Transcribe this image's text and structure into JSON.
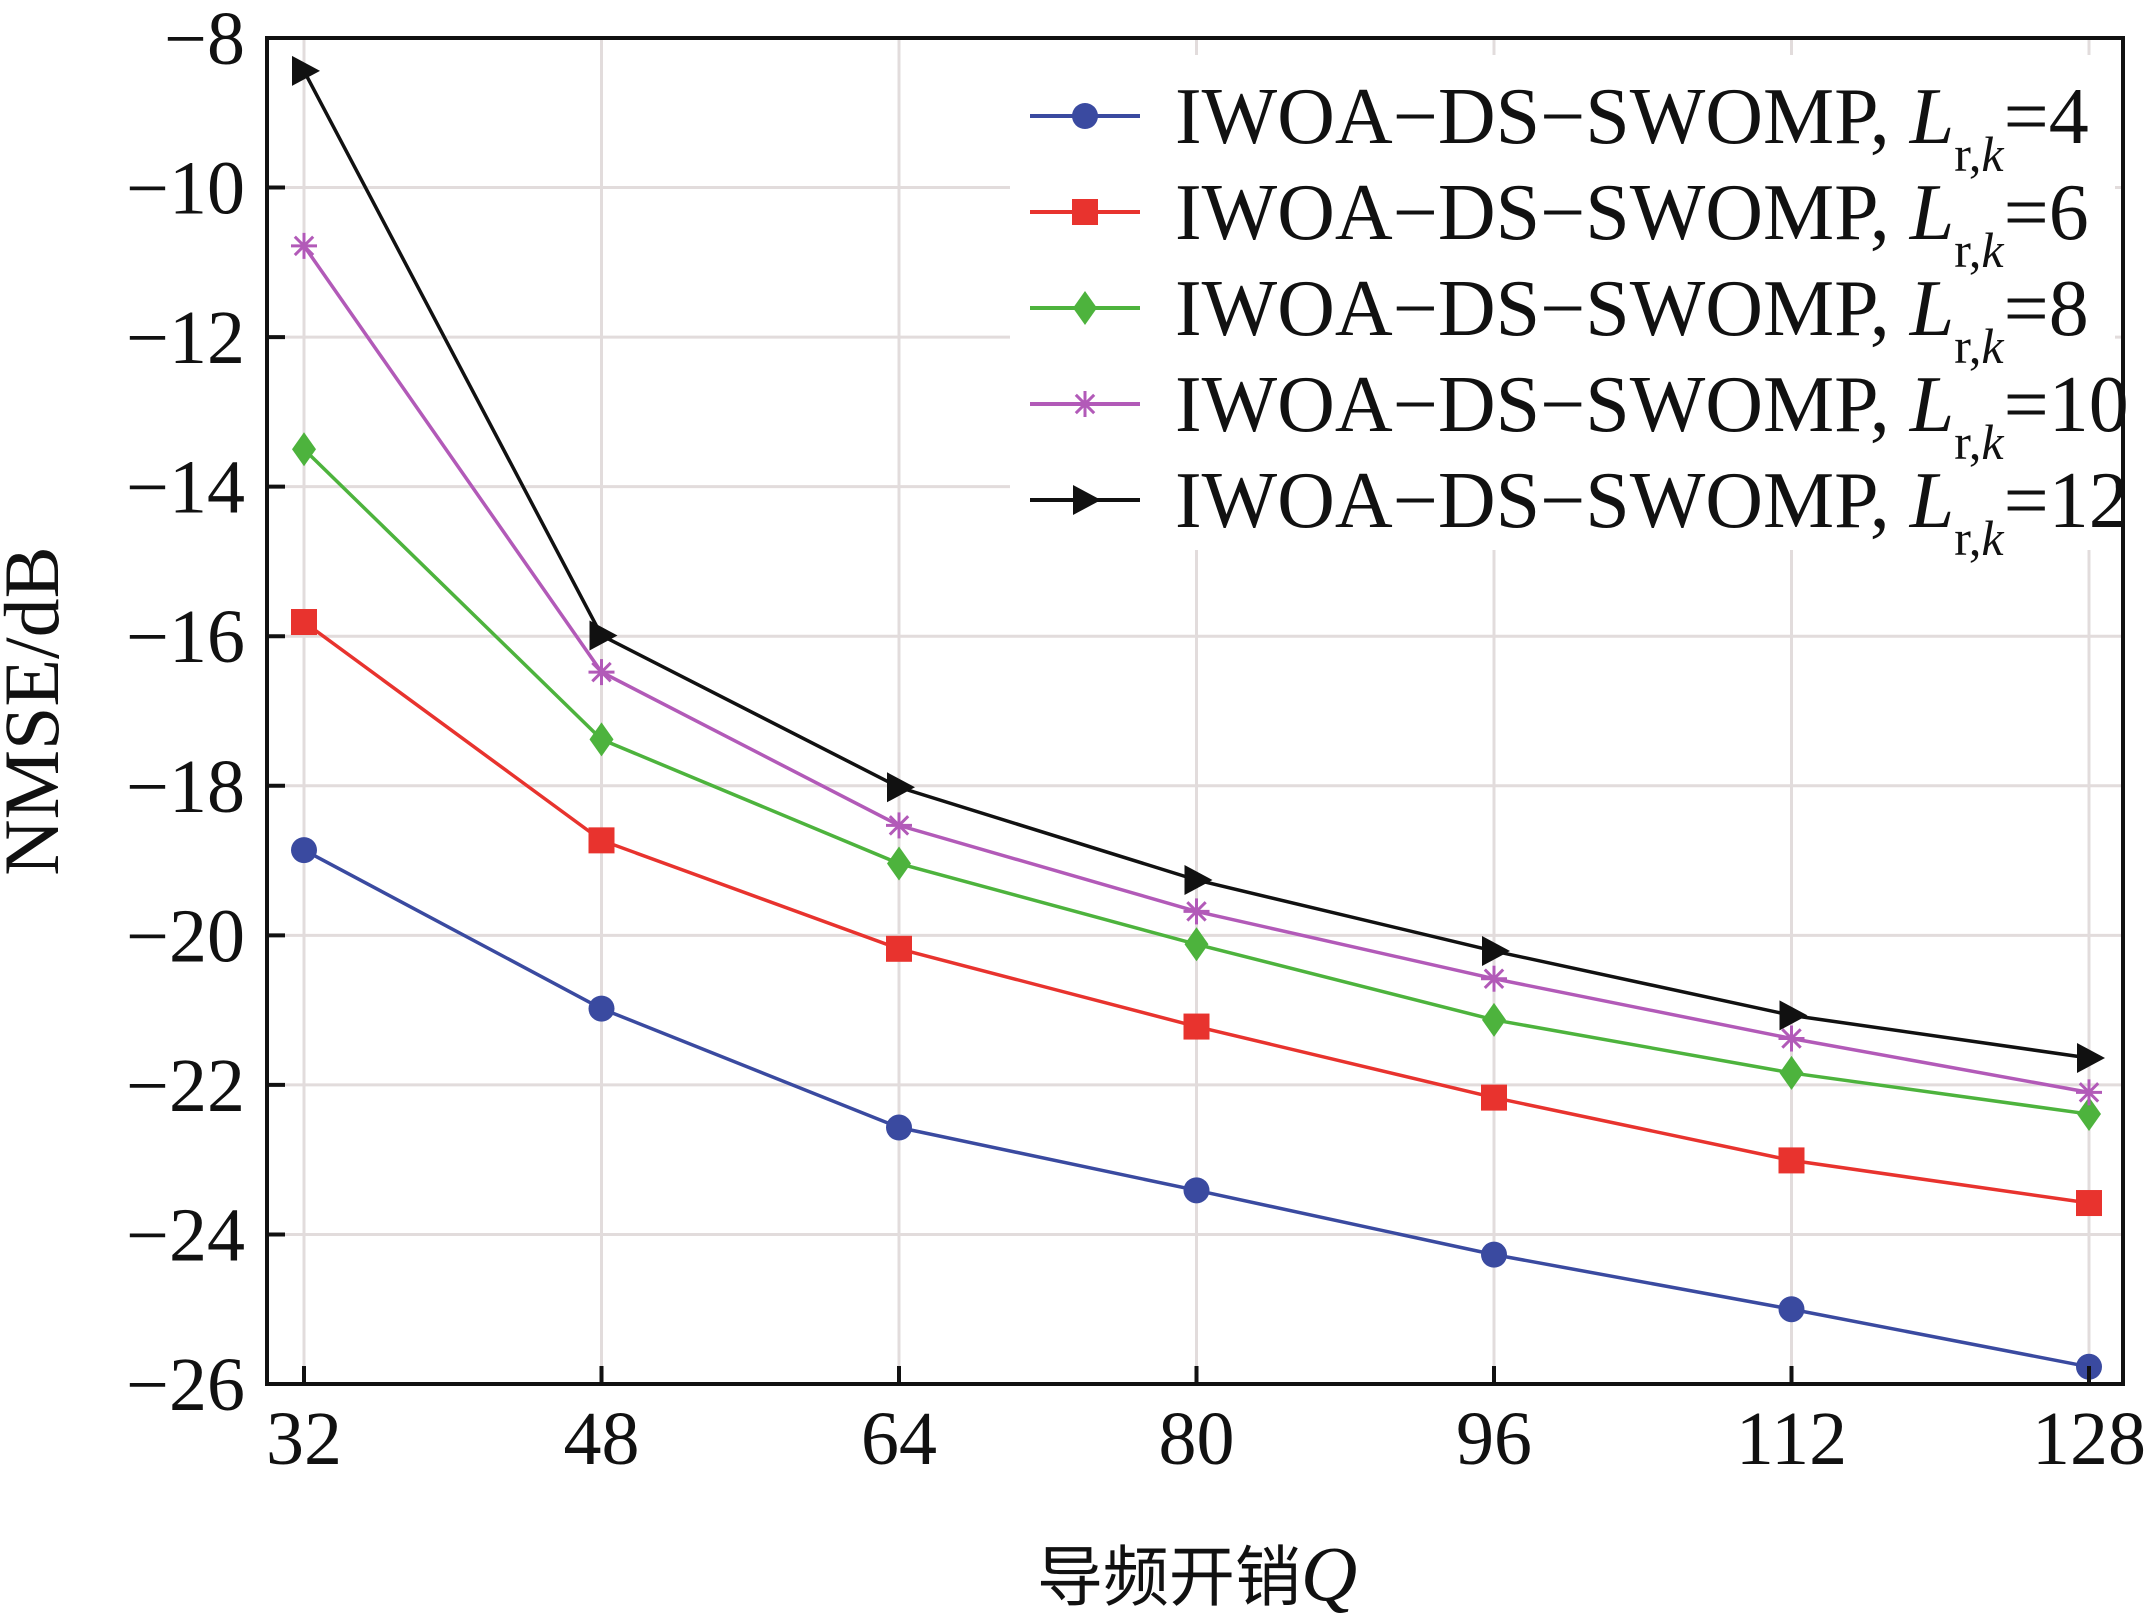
{
  "chart_data": {
    "type": "line",
    "xlabel": "导频开销",
    "xlabel_var": "Q",
    "ylabel": "NMSE/dB",
    "x": [
      32,
      48,
      64,
      80,
      96,
      112,
      128
    ],
    "xticks": [
      "32",
      "48",
      "64",
      "80",
      "96",
      "112",
      "128"
    ],
    "yticks": [
      "−8",
      "−10",
      "−12",
      "−14",
      "−16",
      "−18",
      "−20",
      "−22",
      "−24",
      "−26"
    ],
    "ytick_values": [
      -8,
      -10,
      -12,
      -14,
      -16,
      -18,
      -20,
      -22,
      -24,
      -26
    ],
    "xlim": [
      32,
      128
    ],
    "ylim": [
      -26,
      -8
    ],
    "grid": true,
    "legend_position": "top-right",
    "series": [
      {
        "name_prefix": "IWOA−DS−SWOMP, ",
        "name_var": "L",
        "name_sub": "r,",
        "name_sub_var": "k",
        "name_suffix": "=4",
        "color": "#3a4aa0",
        "marker": "circle",
        "values": [
          -18.86,
          -20.98,
          -22.57,
          -23.41,
          -24.27,
          -25.0,
          -25.77
        ]
      },
      {
        "name_prefix": "IWOA−DS−SWOMP, ",
        "name_var": "L",
        "name_sub": "r,",
        "name_sub_var": "k",
        "name_suffix": "=6",
        "color": "#e8332e",
        "marker": "square",
        "values": [
          -15.81,
          -18.73,
          -20.18,
          -21.22,
          -22.17,
          -23.01,
          -23.58
        ]
      },
      {
        "name_prefix": "IWOA−DS−SWOMP, ",
        "name_var": "L",
        "name_sub": "r,",
        "name_sub_var": "k",
        "name_suffix": "=8",
        "color": "#4db33d",
        "marker": "diamond",
        "values": [
          -13.5,
          -17.38,
          -19.04,
          -20.12,
          -21.13,
          -21.84,
          -22.39
        ]
      },
      {
        "name_prefix": "IWOA−DS−SWOMP, ",
        "name_var": "L",
        "name_sub": "r,",
        "name_sub_var": "k",
        "name_suffix": "=10",
        "color": "#b25ab8",
        "marker": "asterisk",
        "values": [
          -10.78,
          -16.48,
          -18.53,
          -19.68,
          -20.58,
          -21.38,
          -22.1
        ]
      },
      {
        "name_prefix": "IWOA−DS−SWOMP, ",
        "name_var": "L",
        "name_sub": "r,",
        "name_sub_var": "k",
        "name_suffix": "=12",
        "color": "#111111",
        "marker": "triangle-right",
        "values": [
          -8.44,
          -15.99,
          -18.02,
          -19.26,
          -20.21,
          -21.07,
          -21.64
        ]
      }
    ]
  }
}
